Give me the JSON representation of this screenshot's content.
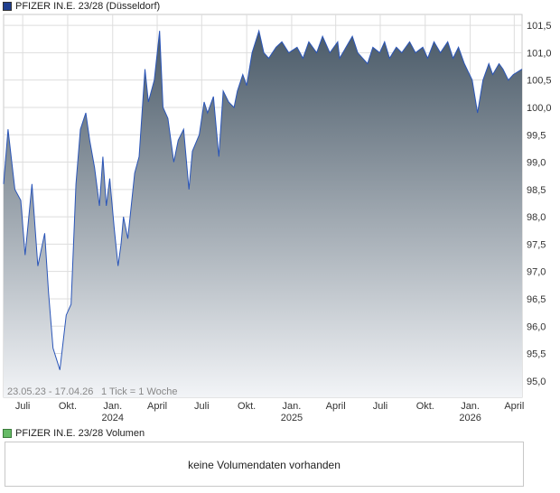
{
  "legend": {
    "price_series": "PFIZER IN.E. 23/28 (Düsseldorf)",
    "volume_series": "PFIZER IN.E. 23/28 Volumen"
  },
  "footer_info": {
    "range": "23.05.23 - 17.04.26",
    "tick": "1 Tick = 1 Woche"
  },
  "volume_message": "keine Volumendaten vorhanden",
  "colors": {
    "line": "#2a55b8",
    "fill_top": "#4a5a68",
    "fill_bottom": "#f2f4f7",
    "grid": "#dddddd"
  },
  "chart_data": {
    "type": "area",
    "title": "PFIZER IN.E. 23/28 (Düsseldorf)",
    "ylim": [
      94.7,
      101.7
    ],
    "y_ticks": [
      "95,0",
      "95,5",
      "96,0",
      "96,5",
      "97,0",
      "97,5",
      "98,0",
      "98,5",
      "99,0",
      "99,5",
      "100,0",
      "100,5",
      "101,0",
      "101,5"
    ],
    "y_tick_values": [
      95.0,
      95.5,
      96.0,
      96.5,
      97.0,
      97.5,
      98.0,
      98.5,
      99.0,
      99.5,
      100.0,
      100.5,
      101.0,
      101.5
    ],
    "x_ticks": [
      {
        "label": "Juli",
        "year": ""
      },
      {
        "label": "Okt.",
        "year": ""
      },
      {
        "label": "Jan.",
        "year": "2024"
      },
      {
        "label": "April",
        "year": ""
      },
      {
        "label": "Juli",
        "year": ""
      },
      {
        "label": "Okt.",
        "year": ""
      },
      {
        "label": "Jan.",
        "year": "2025"
      },
      {
        "label": "April",
        "year": ""
      },
      {
        "label": "Juli",
        "year": ""
      },
      {
        "label": "Okt.",
        "year": ""
      },
      {
        "label": "Jan.",
        "year": "2026"
      },
      {
        "label": "April",
        "year": ""
      }
    ],
    "x_tick_dates": [
      "2023-07-01",
      "2023-10-01",
      "2024-01-01",
      "2024-04-01",
      "2024-07-01",
      "2024-10-01",
      "2025-01-01",
      "2025-04-01",
      "2025-07-01",
      "2025-10-01",
      "2026-01-01",
      "2026-04-01"
    ],
    "x_range": [
      "2023-05-23",
      "2026-04-17"
    ],
    "grid": true,
    "series": [
      {
        "name": "PFIZER IN.E. 23/28 (Düsseldorf)",
        "x": [
          "2023-05-23",
          "2023-06-01",
          "2023-06-15",
          "2023-06-27",
          "2023-07-06",
          "2023-07-20",
          "2023-08-01",
          "2023-08-15",
          "2023-08-23",
          "2023-09-01",
          "2023-09-15",
          "2023-09-28",
          "2023-10-08",
          "2023-10-18",
          "2023-10-27",
          "2023-11-07",
          "2023-11-15",
          "2023-11-25",
          "2023-12-05",
          "2023-12-12",
          "2023-12-19",
          "2023-12-26",
          "2024-01-04",
          "2024-01-12",
          "2024-01-18",
          "2024-01-23",
          "2024-02-01",
          "2024-02-15",
          "2024-02-24",
          "2024-03-07",
          "2024-03-14",
          "2024-03-26",
          "2024-04-06",
          "2024-04-13",
          "2024-04-23",
          "2024-05-05",
          "2024-05-14",
          "2024-05-25",
          "2024-06-05",
          "2024-06-12",
          "2024-06-26",
          "2024-07-06",
          "2024-07-13",
          "2024-07-25",
          "2024-08-05",
          "2024-08-14",
          "2024-08-25",
          "2024-09-05",
          "2024-09-12",
          "2024-09-23",
          "2024-10-01",
          "2024-10-12",
          "2024-10-26",
          "2024-11-05",
          "2024-11-15",
          "2024-11-30",
          "2024-12-12",
          "2024-12-26",
          "2025-01-12",
          "2025-01-24",
          "2025-02-05",
          "2025-02-21",
          "2025-03-05",
          "2025-03-20",
          "2025-04-05",
          "2025-04-09",
          "2025-04-22",
          "2025-05-05",
          "2025-05-16",
          "2025-06-05",
          "2025-06-16",
          "2025-06-30",
          "2025-07-10",
          "2025-07-20",
          "2025-08-03",
          "2025-08-14",
          "2025-08-30",
          "2025-09-11",
          "2025-09-26",
          "2025-10-06",
          "2025-10-19",
          "2025-11-01",
          "2025-11-16",
          "2025-11-27",
          "2025-12-08",
          "2025-12-20",
          "2026-01-05",
          "2026-01-16",
          "2026-01-27",
          "2026-02-08",
          "2026-02-16",
          "2026-03-01",
          "2026-03-09",
          "2026-03-20",
          "2026-03-30",
          "2026-04-17"
        ],
        "y": [
          98.6,
          99.6,
          98.5,
          98.3,
          97.3,
          98.6,
          97.1,
          97.7,
          96.6,
          95.6,
          95.2,
          96.2,
          96.4,
          98.6,
          99.6,
          99.9,
          99.4,
          98.9,
          98.2,
          99.1,
          98.2,
          98.7,
          97.8,
          97.1,
          97.5,
          98.0,
          97.6,
          98.8,
          99.1,
          100.7,
          100.1,
          100.5,
          101.4,
          100.0,
          99.8,
          99.0,
          99.4,
          99.6,
          98.5,
          99.2,
          99.5,
          100.1,
          99.9,
          100.2,
          99.1,
          100.3,
          100.1,
          100.0,
          100.3,
          100.6,
          100.4,
          101.0,
          101.4,
          101.0,
          100.9,
          101.1,
          101.2,
          101.0,
          101.1,
          100.9,
          101.2,
          101.0,
          101.3,
          101.0,
          101.2,
          100.9,
          101.1,
          101.3,
          101.0,
          100.8,
          101.1,
          101.0,
          101.2,
          100.9,
          101.1,
          101.0,
          101.2,
          101.0,
          101.1,
          100.9,
          101.2,
          101.0,
          101.2,
          100.9,
          101.1,
          100.8,
          100.5,
          99.9,
          100.5,
          100.8,
          100.6,
          100.8,
          100.7,
          100.5,
          100.6,
          100.7
        ]
      }
    ]
  }
}
